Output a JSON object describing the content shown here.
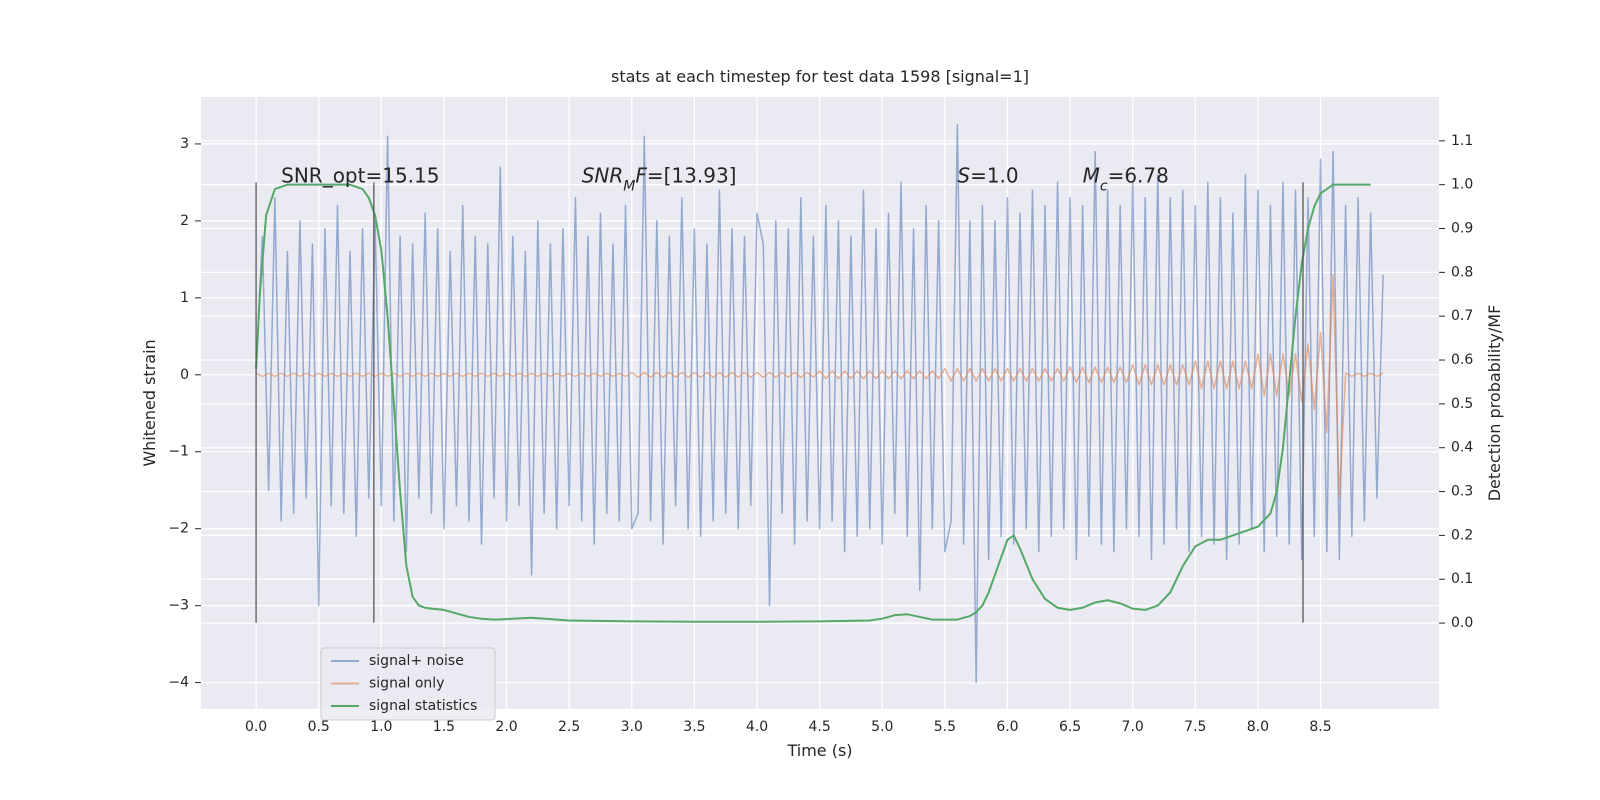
{
  "chart_data": {
    "type": "line",
    "title": "stats at each timestep for test data 1598 [signal=1]",
    "xlabel": "Time (s)",
    "ylabel": "Whitened strain",
    "y2label": "Detection probability/MF",
    "background": "#eaeaf2",
    "grid": true,
    "legend": "lower left",
    "xlim": [
      -0.44,
      9.446
    ],
    "ylim": [
      -4.343,
      3.61
    ],
    "y2lim": [
      -0.196,
      1.2
    ],
    "xticks": [
      {
        "value": 0,
        "label": "0.0"
      },
      0.5,
      {
        "value": 1,
        "label": "1.0"
      },
      1.5,
      {
        "value": 2,
        "label": "2.0"
      },
      2.5,
      {
        "value": 3,
        "label": "3.0"
      },
      3.5,
      {
        "value": 4,
        "label": "4.0"
      },
      4.5,
      {
        "value": 5,
        "label": "5.0"
      },
      5.5,
      {
        "value": 6,
        "label": "6.0"
      },
      6.5,
      {
        "value": 7,
        "label": "7.0"
      },
      7.5,
      {
        "value": 8,
        "label": "8.0"
      },
      8.5
    ],
    "yticks": [
      {
        "value": -4,
        "label": "−4"
      },
      {
        "value": -3,
        "label": "−3"
      },
      {
        "value": -2,
        "label": "−2"
      },
      {
        "value": -1,
        "label": "−1"
      },
      0,
      1,
      2,
      3
    ],
    "y2ticks": [
      {
        "value": 0,
        "label": "0.0"
      },
      0.1,
      0.2,
      0.3,
      0.4,
      0.5,
      0.6,
      0.7,
      0.8,
      0.9,
      {
        "value": 1,
        "label": "1.0"
      },
      1.1
    ],
    "x": [
      0,
      0.05,
      0.1,
      0.15,
      0.2,
      0.25,
      0.3,
      0.35,
      0.4,
      0.45,
      0.5,
      0.55,
      0.6,
      0.65,
      0.7,
      0.75,
      0.8,
      0.85,
      0.9,
      0.95,
      1,
      1.05,
      1.1,
      1.15,
      1.2,
      1.25,
      1.3,
      1.35,
      1.4,
      1.45,
      1.5,
      1.55,
      1.6,
      1.65,
      1.7,
      1.75,
      1.8,
      1.85,
      1.9,
      1.95,
      2,
      2.05,
      2.1,
      2.15,
      2.2,
      2.25,
      2.3,
      2.35,
      2.4,
      2.45,
      2.5,
      2.55,
      2.6,
      2.65,
      2.7,
      2.75,
      2.8,
      2.85,
      2.9,
      2.95,
      3,
      3.05,
      3.1,
      3.15,
      3.2,
      3.25,
      3.3,
      3.35,
      3.4,
      3.45,
      3.5,
      3.55,
      3.6,
      3.65,
      3.7,
      3.75,
      3.8,
      3.85,
      3.9,
      3.95,
      4,
      4.05,
      4.1,
      4.15,
      4.2,
      4.25,
      4.3,
      4.35,
      4.4,
      4.45,
      4.5,
      4.55,
      4.6,
      4.65,
      4.7,
      4.75,
      4.8,
      4.85,
      4.9,
      4.95,
      5,
      5.05,
      5.1,
      5.15,
      5.2,
      5.25,
      5.3,
      5.35,
      5.4,
      5.45,
      5.5,
      5.55,
      5.6,
      5.65,
      5.7,
      5.75,
      5.8,
      5.85,
      5.9,
      5.95,
      6,
      6.05,
      6.1,
      6.15,
      6.2,
      6.25,
      6.3,
      6.35,
      6.4,
      6.45,
      6.5,
      6.55,
      6.6,
      6.65,
      6.7,
      6.75,
      6.8,
      6.85,
      6.9,
      6.95,
      7,
      7.05,
      7.1,
      7.15,
      7.2,
      7.25,
      7.3,
      7.35,
      7.4,
      7.45,
      7.5,
      7.55,
      7.6,
      7.65,
      7.7,
      7.75,
      7.8,
      7.85,
      7.9,
      7.95,
      8,
      8.05,
      8.1,
      8.15,
      8.2,
      8.25,
      8.3,
      8.35,
      8.4,
      8.45,
      8.5,
      8.55,
      8.6,
      8.65,
      8.7,
      8.75,
      8.8,
      8.85,
      8.9,
      8.95,
      9
    ],
    "series": [
      {
        "name": "signal+ noise",
        "color": "#4c72b0",
        "values": [
          0.1,
          1.8,
          -1.5,
          2.3,
          -1.9,
          1.6,
          -1.8,
          2.0,
          -1.6,
          1.7,
          -3.0,
          1.9,
          -1.7,
          2.2,
          -1.8,
          1.6,
          -2.1,
          1.9,
          -1.6,
          2.0,
          -1.7,
          3.1,
          -1.9,
          1.8,
          -2.3,
          1.7,
          -1.6,
          2.1,
          -1.8,
          1.9,
          -2.0,
          1.6,
          -1.7,
          2.2,
          -1.9,
          1.8,
          -2.2,
          1.7,
          -1.6,
          2.7,
          -1.9,
          1.8,
          -1.7,
          1.6,
          -2.6,
          2.0,
          -1.8,
          1.7,
          -2.0,
          1.9,
          -1.7,
          2.3,
          -1.9,
          1.8,
          -2.2,
          2.1,
          -1.8,
          1.7,
          -1.9,
          2.2,
          -2.0,
          -1.8,
          3.1,
          -1.9,
          2.0,
          -2.2,
          1.8,
          -1.7,
          2.3,
          -2.0,
          1.9,
          -2.1,
          1.7,
          -1.9,
          2.4,
          -1.8,
          1.9,
          -2.0,
          1.8,
          -1.7,
          2.1,
          1.7,
          -3.0,
          2.0,
          -1.8,
          1.9,
          -2.2,
          2.3,
          -1.9,
          1.8,
          -2.0,
          2.2,
          -1.9,
          2.0,
          -2.3,
          1.8,
          -2.1,
          2.4,
          -2.0,
          1.9,
          -2.2,
          2.1,
          -1.8,
          2.5,
          -2.1,
          1.9,
          -2.8,
          2.2,
          -2.0,
          2.0,
          -2.3,
          -1.9,
          3.25,
          -2.2,
          2.0,
          -4.0,
          2.2,
          -2.4,
          2.0,
          -2.1,
          2.3,
          -2.2,
          2.1,
          -2.0,
          2.4,
          -2.3,
          2.2,
          -2.1,
          2.5,
          -2.0,
          2.3,
          -2.4,
          2.2,
          -2.1,
          2.9,
          -2.2,
          2.4,
          -2.3,
          2.2,
          -2.0,
          2.5,
          -2.1,
          2.3,
          -2.4,
          2.6,
          -2.2,
          2.3,
          -2.0,
          2.4,
          -2.3,
          2.2,
          -2.1,
          2.5,
          -2.2,
          2.3,
          -2.4,
          2.1,
          -2.2,
          2.6,
          -2.0,
          2.4,
          -2.3,
          2.2,
          -2.1,
          2.5,
          -2.2,
          2.4,
          -2.4,
          2.3,
          -2.1,
          2.8,
          -2.3,
          2.9,
          -2.4,
          2.2,
          -2.1,
          2.3,
          -1.9,
          2.1,
          -1.6,
          1.3
        ]
      },
      {
        "name": "signal only",
        "color": "#dd8452",
        "values": [
          0.02,
          -0.02,
          0.02,
          -0.02,
          0.02,
          -0.02,
          0.02,
          -0.02,
          0.02,
          -0.02,
          0.02,
          -0.02,
          0.02,
          -0.02,
          0.02,
          -0.02,
          0.02,
          -0.02,
          0.02,
          -0.02,
          0.02,
          -0.02,
          0.02,
          -0.02,
          0.02,
          -0.02,
          0.02,
          -0.02,
          0.02,
          -0.02,
          0.02,
          -0.02,
          0.02,
          -0.02,
          0.02,
          -0.02,
          0.02,
          -0.02,
          0.02,
          -0.02,
          0.02,
          -0.02,
          0.02,
          -0.02,
          0.02,
          -0.02,
          0.02,
          -0.02,
          0.02,
          -0.02,
          0.02,
          -0.02,
          0.02,
          -0.02,
          0.02,
          -0.02,
          0.02,
          -0.02,
          0.02,
          -0.02,
          0.03,
          -0.03,
          0.03,
          -0.03,
          0.03,
          -0.03,
          0.03,
          -0.03,
          0.03,
          -0.03,
          0.03,
          -0.03,
          0.03,
          -0.03,
          0.03,
          -0.03,
          0.03,
          -0.03,
          0.03,
          -0.03,
          0.03,
          -0.03,
          0.03,
          -0.03,
          0.03,
          -0.03,
          0.03,
          -0.03,
          0.03,
          -0.03,
          0.05,
          -0.05,
          0.05,
          -0.05,
          0.05,
          -0.05,
          0.05,
          -0.05,
          0.05,
          -0.05,
          0.05,
          -0.05,
          0.05,
          -0.05,
          0.05,
          -0.05,
          0.05,
          -0.05,
          0.05,
          -0.05,
          0.08,
          -0.08,
          0.08,
          -0.08,
          0.08,
          -0.08,
          0.08,
          -0.08,
          0.08,
          -0.08,
          0.08,
          -0.08,
          0.08,
          -0.08,
          0.08,
          -0.08,
          0.08,
          -0.08,
          0.08,
          -0.08,
          0.1,
          -0.1,
          0.1,
          -0.1,
          0.1,
          -0.1,
          0.1,
          -0.1,
          0.1,
          -0.1,
          0.13,
          -0.13,
          0.13,
          -0.13,
          0.13,
          -0.13,
          0.13,
          -0.13,
          0.13,
          -0.13,
          0.18,
          -0.18,
          0.18,
          -0.18,
          0.18,
          -0.18,
          0.18,
          -0.18,
          0.18,
          -0.18,
          0.27,
          -0.27,
          0.27,
          -0.27,
          0.27,
          -0.27,
          0.27,
          -0.35,
          0.4,
          -0.45,
          0.55,
          -0.75,
          1.3,
          -1.6,
          0.02,
          -0.02,
          0.02,
          -0.02,
          0.02,
          -0.02,
          0.02
        ]
      },
      {
        "name": "signal statistics",
        "color": "#55a868",
        "axis": "y2",
        "x": [
          0,
          0.03,
          0.08,
          0.15,
          0.25,
          0.4,
          0.6,
          0.75,
          0.85,
          0.9,
          0.95,
          1.0,
          1.05,
          1.1,
          1.15,
          1.2,
          1.25,
          1.3,
          1.35,
          1.4,
          1.5,
          1.6,
          1.7,
          1.8,
          1.9,
          2.0,
          2.2,
          2.5,
          3.0,
          3.5,
          4.0,
          4.5,
          4.9,
          5.0,
          5.1,
          5.2,
          5.3,
          5.4,
          5.6,
          5.7,
          5.75,
          5.8,
          5.85,
          5.9,
          6.0,
          6.05,
          6.1,
          6.2,
          6.3,
          6.4,
          6.5,
          6.6,
          6.7,
          6.8,
          6.9,
          7.0,
          7.1,
          7.2,
          7.3,
          7.4,
          7.5,
          7.6,
          7.7,
          7.8,
          7.9,
          8.0,
          8.1,
          8.15,
          8.2,
          8.25,
          8.3,
          8.35,
          8.4,
          8.45,
          8.5,
          8.55,
          8.6,
          8.7,
          8.8,
          8.9
        ],
        "values": [
          0.58,
          0.75,
          0.93,
          0.99,
          1.0,
          1.0,
          1.0,
          1.0,
          0.99,
          0.97,
          0.93,
          0.85,
          0.7,
          0.5,
          0.3,
          0.13,
          0.06,
          0.04,
          0.035,
          0.033,
          0.03,
          0.022,
          0.014,
          0.01,
          0.008,
          0.009,
          0.012,
          0.006,
          0.004,
          0.003,
          0.003,
          0.004,
          0.006,
          0.01,
          0.018,
          0.02,
          0.014,
          0.008,
          0.008,
          0.016,
          0.025,
          0.04,
          0.07,
          0.11,
          0.19,
          0.2,
          0.17,
          0.1,
          0.055,
          0.035,
          0.03,
          0.035,
          0.047,
          0.052,
          0.045,
          0.033,
          0.03,
          0.04,
          0.07,
          0.13,
          0.175,
          0.19,
          0.19,
          0.2,
          0.21,
          0.22,
          0.25,
          0.3,
          0.4,
          0.55,
          0.7,
          0.82,
          0.9,
          0.95,
          0.98,
          0.99,
          1.0,
          1.0,
          1.0,
          1.0
        ]
      }
    ],
    "vlines": {
      "x": [
        0,
        0.94,
        8.36
      ],
      "ymin": -3.22,
      "ymax": 2.5,
      "color": "#555555"
    },
    "annotations": [
      {
        "x": 0.2,
        "y": 2.5,
        "parts": [
          {
            "text": "SNR_opt=15.15"
          }
        ]
      },
      {
        "x": 2.6,
        "y": 2.5,
        "parts": [
          {
            "text": "SNR",
            "italic": true
          },
          {
            "text": "M",
            "italic": true,
            "sub": true
          },
          {
            "text": "F",
            "italic": true
          },
          {
            "text": "=[13.93]"
          }
        ]
      },
      {
        "x": 5.6,
        "y": 2.5,
        "parts": [
          {
            "text": "S",
            "italic": true
          },
          {
            "text": "=1.0"
          }
        ]
      },
      {
        "x": 6.6,
        "y": 2.5,
        "parts": [
          {
            "text": "M",
            "italic": true
          },
          {
            "text": "c",
            "italic": true,
            "sub": true
          },
          {
            "text": "=6.78"
          }
        ]
      }
    ]
  }
}
